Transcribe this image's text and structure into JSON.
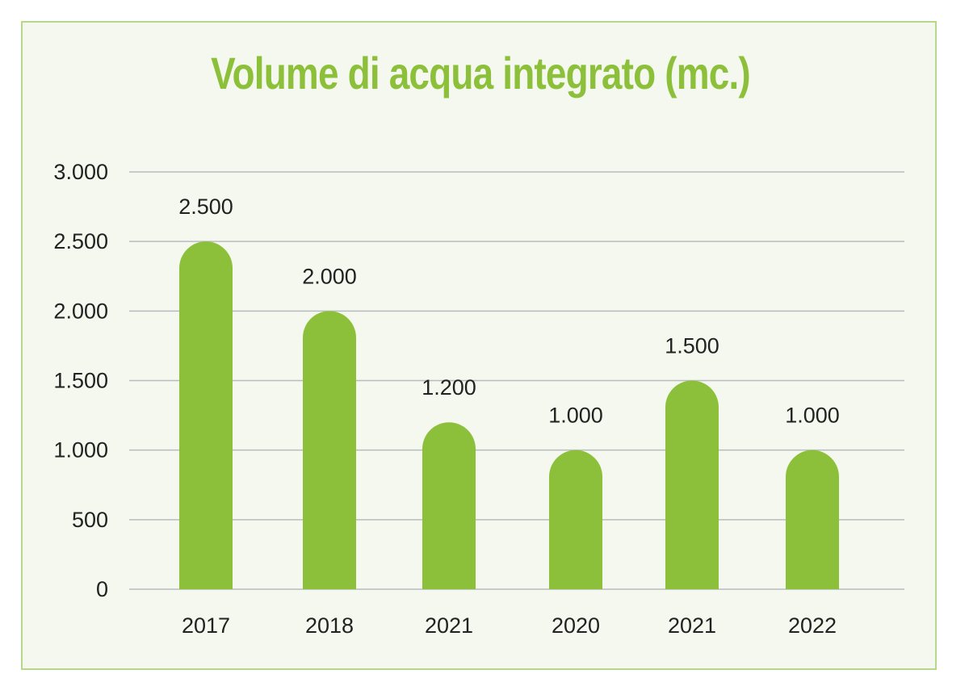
{
  "chart_data": {
    "type": "bar",
    "title": "Volume di acqua integrato (mc.)",
    "xlabel": "",
    "ylabel": "",
    "categories": [
      "2017",
      "2018",
      "2021",
      "2020",
      "2021",
      "2022"
    ],
    "values": [
      2500,
      2000,
      1200,
      1000,
      1500,
      1000
    ],
    "value_labels": [
      "2.500",
      "2.000",
      "1.200",
      "1.000",
      "1.500",
      "1.000"
    ],
    "ylim": [
      0,
      3000
    ],
    "yticks": [
      0,
      500,
      1000,
      1500,
      2000,
      2500,
      3000
    ],
    "ytick_labels": [
      "0",
      "500",
      "1.000",
      "1.500",
      "2.000",
      "2.500",
      "3.000"
    ],
    "grid": true,
    "legend": "none",
    "bar_color": "#8dc03a",
    "grid_color": "#b9bcbf",
    "background_color": "#f4f8ee",
    "border_color": "#b6d88a"
  }
}
